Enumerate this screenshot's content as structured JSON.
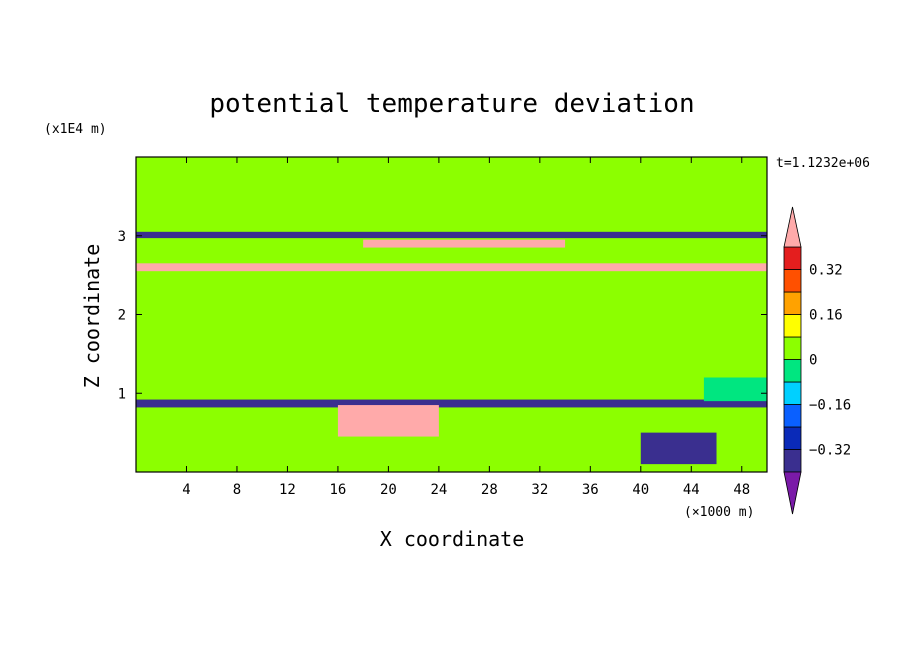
{
  "chart_data": {
    "type": "heatmap",
    "title": "potential temperature deviation",
    "xlabel": "X coordinate",
    "ylabel": "Z coordinate",
    "x_unit": "(×1000 m)",
    "y_unit": "(x1E4 m)",
    "time_label": "t=1.1232e+06",
    "xlim": [
      0,
      50
    ],
    "ylim": [
      0,
      4
    ],
    "x_ticks": [
      4,
      8,
      12,
      16,
      20,
      24,
      28,
      32,
      36,
      40,
      44,
      48
    ],
    "x_tick_labels": [
      "4",
      "8",
      "12",
      "16",
      "20",
      "24",
      "28",
      "32",
      "36",
      "40",
      "44",
      "48"
    ],
    "y_ticks": [
      1,
      2,
      3
    ],
    "y_tick_labels": [
      "1",
      "2",
      "3"
    ],
    "colorbar": {
      "levels": [
        -0.4,
        -0.32,
        -0.24,
        -0.16,
        -0.08,
        0,
        0.08,
        0.16,
        0.24,
        0.32,
        0.4
      ],
      "labels": [
        {
          "value": 0.32,
          "text": "0.32"
        },
        {
          "value": 0.16,
          "text": "0.16"
        },
        {
          "value": 0,
          "text": "0"
        },
        {
          "value": -0.16,
          "text": "−0.16"
        },
        {
          "value": -0.32,
          "text": "−0.32"
        }
      ],
      "colors": [
        "#3a2f8f",
        "#0a2ab8",
        "#0a60ff",
        "#00d0ff",
        "#00e680",
        "#8cff00",
        "#ffff00",
        "#ffa200",
        "#ff5000",
        "#e41e1e"
      ],
      "under_color": "#7a1aa8",
      "over_color": "#ffaaaa"
    },
    "background_level_color": "#8cff00",
    "regions": [
      {
        "z_range": [
          3.15,
          4.0
        ],
        "x_range": [
          0,
          50
        ],
        "value": 0.0
      },
      {
        "z_range": [
          2.97,
          3.05
        ],
        "x_range": [
          0,
          50
        ],
        "value": -0.4
      },
      {
        "z_range": [
          2.85,
          2.95
        ],
        "x_range": [
          18,
          34
        ],
        "value": 0.4
      },
      {
        "z_range": [
          2.55,
          2.65
        ],
        "x_range": [
          0,
          50
        ],
        "value": 0.4
      },
      {
        "z_range": [
          0.82,
          0.92
        ],
        "x_range": [
          0,
          50
        ],
        "value": -0.4
      },
      {
        "z_range": [
          0.45,
          0.85
        ],
        "x_range": [
          16,
          24
        ],
        "value": 0.4
      },
      {
        "z_range": [
          0.1,
          0.5
        ],
        "x_range": [
          40,
          46
        ],
        "value": -0.4
      },
      {
        "z_range": [
          0.9,
          1.2
        ],
        "x_range": [
          45,
          50
        ],
        "value": -0.08
      }
    ]
  }
}
